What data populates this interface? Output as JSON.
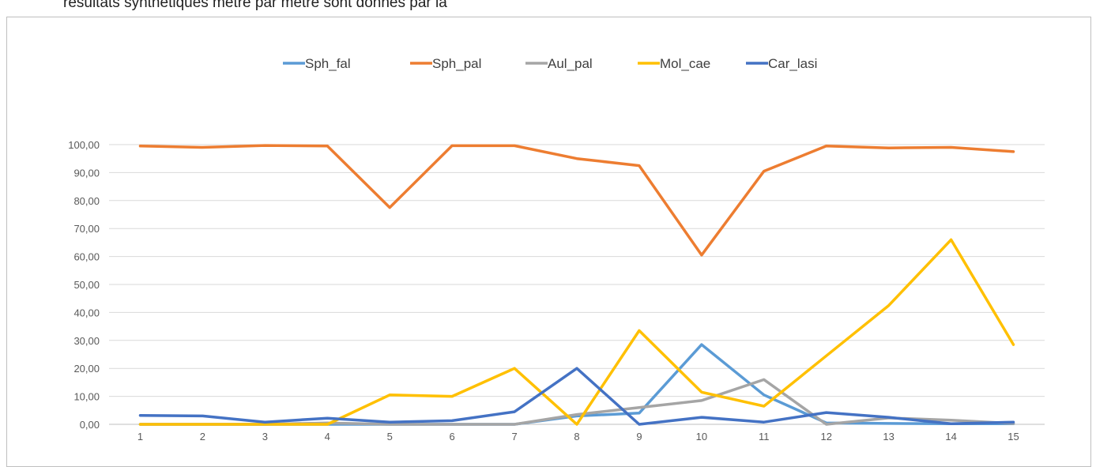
{
  "document": {
    "caption_fragment": "résultats synthétiques mètre par mètre sont donnés par la"
  },
  "chart_data": {
    "type": "line",
    "title": "",
    "xlabel": "",
    "ylabel": "",
    "categories": [
      "1",
      "2",
      "3",
      "4",
      "5",
      "6",
      "7",
      "8",
      "9",
      "10",
      "11",
      "12",
      "13",
      "14",
      "15"
    ],
    "y_tick_labels": [
      "0,00",
      "10,00",
      "20,00",
      "30,00",
      "40,00",
      "50,00",
      "60,00",
      "70,00",
      "80,00",
      "90,00",
      "100,00"
    ],
    "ylim": [
      0,
      100
    ],
    "grid": "horizontal",
    "legend_position": "top",
    "series": [
      {
        "name": "Sph_fal",
        "color": "#5B9BD5",
        "values": [
          0,
          0,
          0,
          0,
          0,
          0,
          0,
          3,
          4,
          28.5,
          10.5,
          0.5,
          0.3,
          0.2,
          0.2
        ]
      },
      {
        "name": "Sph_pal",
        "color": "#ED7D31",
        "values": [
          99.5,
          99,
          99.7,
          99.5,
          77.5,
          99.6,
          99.6,
          95,
          92.5,
          60.5,
          90.5,
          99.5,
          98.8,
          99,
          97.5
        ]
      },
      {
        "name": "Aul_pal",
        "color": "#A5A5A5",
        "values": [
          0,
          0,
          0,
          0.5,
          0,
          0,
          0,
          3.5,
          6,
          8.5,
          16,
          0,
          2.3,
          1.5,
          0.3
        ]
      },
      {
        "name": "Mol_cae",
        "color": "#FFC000",
        "values": [
          0,
          0,
          0,
          0,
          10.5,
          10,
          20,
          0,
          33.5,
          11.5,
          6.5,
          24.5,
          42.5,
          66,
          28.5
        ]
      },
      {
        "name": "Car_lasi",
        "color": "#4472C4",
        "values": [
          3.2,
          3,
          0.8,
          2.2,
          0.8,
          1.3,
          4.5,
          20,
          0,
          2.5,
          0.8,
          4.2,
          2.5,
          0.2,
          0.8
        ]
      }
    ]
  }
}
